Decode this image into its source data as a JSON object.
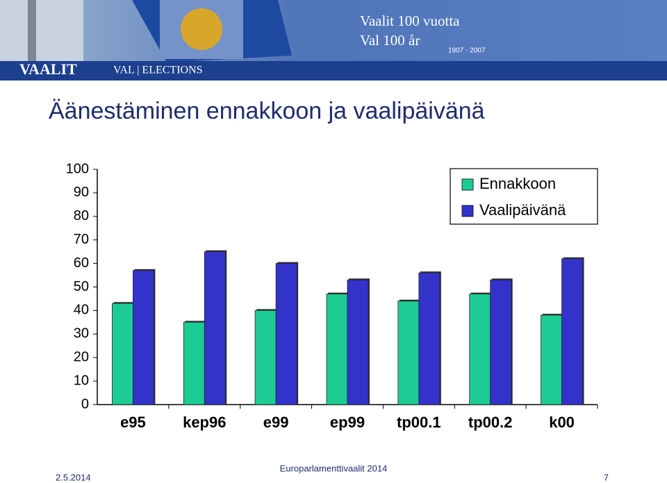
{
  "header": {
    "brand": "VAALIT",
    "subbrand": "VAL | ELECTIONS",
    "line1": "Vaalit 100 vuotta",
    "line2": "Val 100 år",
    "years": "1907 - 2007"
  },
  "chart_data": {
    "type": "bar",
    "title": "Äänestäminen ennakkoon ja vaalipäivänä",
    "categories": [
      "e95",
      "kep96",
      "e99",
      "ep99",
      "tp00.1",
      "tp00.2",
      "k00"
    ],
    "series": [
      {
        "name": "Ennakkoon",
        "color": "#1ccc94",
        "values": [
          43,
          35,
          40,
          47,
          44,
          47,
          38
        ]
      },
      {
        "name": "Vaalipäivänä",
        "color": "#3333cc",
        "values": [
          57,
          65,
          60,
          53,
          56,
          53,
          62
        ]
      }
    ],
    "ylim": [
      0,
      100
    ],
    "yticks": [
      0,
      10,
      20,
      30,
      40,
      50,
      60,
      70,
      80,
      90,
      100
    ],
    "legend": "top-right"
  },
  "footer": {
    "center": "Europarlamenttivaalit 2014",
    "date": "2.5.2014",
    "page": "7"
  }
}
